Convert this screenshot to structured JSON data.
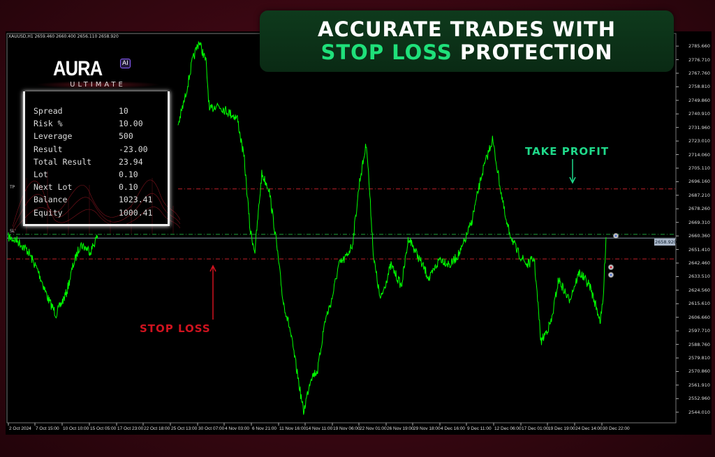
{
  "banner": {
    "line1": "ACCURATE TRADES WITH",
    "highlight": "STOP LOSS",
    "line2_rest": "PROTECTION"
  },
  "chart_header": "XAUUSD,H1  2659.460 2660.400 2656.110 2658.920",
  "logo": {
    "name": "AURA",
    "badge": "AI",
    "sub": "ULTIMATE"
  },
  "stats": [
    {
      "label": "Spread",
      "value": "10"
    },
    {
      "label": "Risk %",
      "value": "10.00"
    },
    {
      "label": "Leverage",
      "value": "500"
    },
    {
      "label": "Result",
      "value": "-23.00"
    },
    {
      "label": "Total Result",
      "value": "23.94"
    },
    {
      "label": "Lot",
      "value": "0.10"
    },
    {
      "label": "Next Lot",
      "value": "0.10"
    },
    {
      "label": "Balance",
      "value": "1023.41"
    },
    {
      "label": "Equity",
      "value": "1000.41"
    }
  ],
  "annotations": {
    "take_profit": "TAKE PROFIT",
    "stop_loss": "STOP LOSS"
  },
  "level_labels": {
    "tp": "TP",
    "open": "SL'"
  },
  "colors": {
    "price_line": "#00ff00",
    "tp_line": "#c0202a",
    "sl_line": "#c0202a",
    "open_line": "#1f9e3a",
    "banner": "#0e3a1c",
    "accent_green": "#1fe07a",
    "accent_red": "#d0131f"
  },
  "chart_data": {
    "type": "line",
    "symbol": "XAUUSD",
    "timeframe": "H1",
    "ylim": [
      2537,
      2794
    ],
    "y_ticks": [
      "2785.660",
      "2776.710",
      "2767.760",
      "2758.810",
      "2749.860",
      "2740.910",
      "2731.960",
      "2723.010",
      "2714.060",
      "2705.110",
      "2696.160",
      "2687.210",
      "2678.260",
      "2669.310",
      "2660.360",
      "2651.410",
      "2642.460",
      "2633.510",
      "2624.560",
      "2615.610",
      "2606.660",
      "2597.710",
      "2588.760",
      "2579.810",
      "2570.860",
      "2561.910",
      "2552.960",
      "2544.010"
    ],
    "x_ticks": [
      "2 Oct 2024",
      "7 Oct 15:00",
      "10 Oct 10:00",
      "15 Oct 05:00",
      "17 Oct 23:00",
      "22 Oct 18:00",
      "25 Oct 13:00",
      "30 Oct 07:00",
      "4 Nov 03:00",
      "6 Nov 21:00",
      "11 Nov 16:00",
      "14 Nov 11:00",
      "19 Nov 06:00",
      "22 Nov 01:00",
      "26 Nov 19:00",
      "29 Nov 18:00",
      "4 Dec 16:00",
      "9 Dec 11:00",
      "12 Dec 06:00",
      "17 Dec 01:00",
      "19 Dec 19:00",
      "24 Dec 14:00",
      "30 Dec 22:00"
    ],
    "current_price": "2658.920",
    "levels": {
      "take_profit": 2691.4,
      "open": 2661.4,
      "stop_loss": 2645.2
    },
    "points": [
      [
        "2024-10-02T00",
        2659.5
      ],
      [
        "2024-10-03T22",
        2657.2
      ],
      [
        "2024-10-06T04",
        2650.3
      ],
      [
        "2024-10-08T00",
        2636.4
      ],
      [
        "2024-10-09T01",
        2617.9
      ],
      [
        "2024-10-09T19",
        2608.7
      ],
      [
        "2024-10-11T04",
        2622.6
      ],
      [
        "2024-10-12T09",
        2641.1
      ],
      [
        "2024-10-13T15",
        2654.9
      ],
      [
        "2024-10-15T08",
        2650.3
      ],
      [
        "2024-10-16T01",
        2660.5
      ],
      null,
      [
        "2024-10-26T21",
        2733.6
      ],
      [
        "2024-10-28T03",
        2751.9
      ],
      [
        "2024-10-29T08",
        2775.0
      ],
      [
        "2024-10-30T13",
        2788.9
      ],
      [
        "2024-10-31T20",
        2775.0
      ],
      [
        "2024-11-01T11",
        2742.7
      ],
      [
        "2024-11-02T17",
        2747.3
      ],
      [
        "2024-11-04T10",
        2742.7
      ],
      [
        "2024-11-05T11",
        2738.1
      ],
      [
        "2024-11-06T04",
        2710.4
      ],
      [
        "2024-11-06T18",
        2664.2
      ],
      [
        "2024-11-07T12",
        2650.3
      ],
      [
        "2024-11-08T17",
        2701.1
      ],
      [
        "2024-11-09T23",
        2691.9
      ],
      [
        "2024-11-11T04",
        2659.5
      ],
      [
        "2024-11-12T03",
        2617.9
      ],
      [
        "2024-11-12T20",
        2599.5
      ],
      [
        "2024-11-13T14",
        2571.7
      ],
      [
        "2024-11-14T07",
        2544.0
      ],
      [
        "2024-11-15T11",
        2567.1
      ],
      [
        "2024-11-16T16",
        2571.7
      ],
      [
        "2024-11-17T22",
        2604.1
      ],
      [
        "2024-11-19T03",
        2617.9
      ],
      [
        "2024-11-19T22",
        2641.1
      ],
      [
        "2024-11-20T15",
        2645.7
      ],
      [
        "2024-11-21T09",
        2654.9
      ],
      [
        "2024-11-22T04",
        2696.5
      ],
      [
        "2024-11-23T09",
        2721.9
      ],
      [
        "2024-11-24T15",
        2645.7
      ],
      [
        "2024-11-25T19",
        2617.9
      ],
      [
        "2024-11-27T08",
        2641.1
      ],
      [
        "2024-11-28T12",
        2627.2
      ],
      [
        "2024-11-29T07",
        2659.5
      ],
      [
        "2024-11-30T21",
        2645.7
      ],
      [
        "2024-12-02T19",
        2631.8
      ],
      [
        "2024-12-04T16",
        2645.7
      ],
      [
        "2024-12-06T13",
        2641.1
      ],
      [
        "2024-12-08T11",
        2650.3
      ],
      [
        "2024-12-09T23",
        2668.8
      ],
      [
        "2024-12-11T01",
        2701.1
      ],
      [
        "2024-12-12T03",
        2724.2
      ],
      [
        "2024-12-13T06",
        2696.5
      ],
      [
        "2024-12-14T11",
        2668.8
      ],
      [
        "2024-12-16T08",
        2650.3
      ],
      [
        "2024-12-17T17",
        2641.1
      ],
      [
        "2024-12-18T10",
        2645.7
      ],
      [
        "2024-12-19T03",
        2590.3
      ],
      [
        "2024-12-20T12",
        2604.1
      ],
      [
        "2024-12-21T18",
        2631.8
      ],
      [
        "2024-12-23T14",
        2617.9
      ],
      [
        "2024-12-25T17",
        2636.4
      ],
      [
        "2024-12-28T03",
        2627.2
      ],
      [
        "2024-12-30T14",
        2604.1
      ],
      [
        "2024-12-31T05",
        2617.9
      ],
      [
        "2024-12-31T21",
        2659.5
      ]
    ]
  }
}
